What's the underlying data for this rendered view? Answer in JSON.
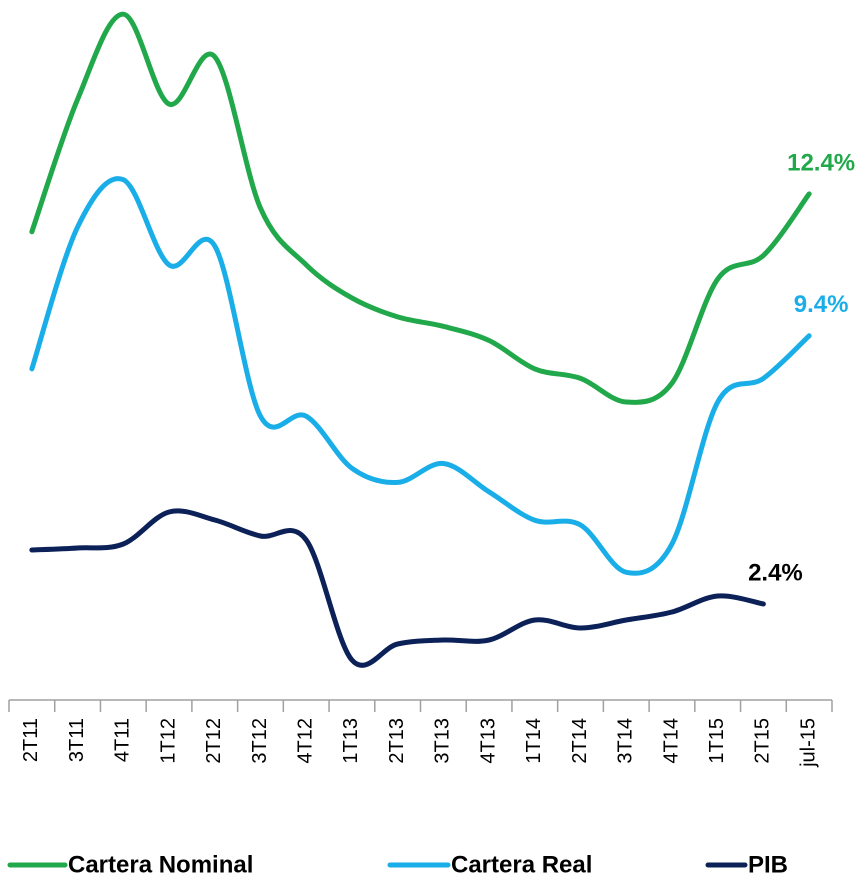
{
  "chart_data": {
    "type": "line",
    "categories": [
      "2T11",
      "3T11",
      "4T11",
      "1T12",
      "2T12",
      "3T12",
      "4T12",
      "1T13",
      "2T13",
      "3T13",
      "4T13",
      "1T14",
      "2T14",
      "3T14",
      "4T14",
      "1T15",
      "2T15",
      "jul-15"
    ],
    "series": [
      {
        "name": "Cartera Nominal",
        "color": "#21a84a",
        "values": [
          11.6,
          14.4,
          16.2,
          14.3,
          15.3,
          12.1,
          10.9,
          10.2,
          9.8,
          9.6,
          9.3,
          8.7,
          8.5,
          8.0,
          8.4,
          10.6,
          11.1,
          12.4
        ],
        "value_labels": [
          null,
          null,
          null,
          null,
          null,
          null,
          null,
          null,
          null,
          null,
          null,
          null,
          null,
          null,
          null,
          null,
          null,
          "12.4%"
        ]
      },
      {
        "name": "Cartera Real",
        "color": "#1aaee8",
        "values": [
          8.7,
          11.7,
          12.7,
          10.9,
          11.3,
          7.7,
          7.7,
          6.6,
          6.3,
          6.7,
          6.1,
          5.5,
          5.4,
          4.4,
          5.0,
          8.0,
          8.5,
          9.4
        ],
        "value_labels": [
          null,
          null,
          null,
          null,
          null,
          null,
          null,
          null,
          null,
          null,
          null,
          null,
          null,
          null,
          null,
          null,
          null,
          "9.4%"
        ]
      },
      {
        "name": "PIB",
        "color": "#0b2157",
        "axis": "y2",
        "values": [
          3.75,
          3.8,
          3.9,
          4.7,
          4.5,
          4.1,
          4.0,
          1.0,
          1.4,
          1.5,
          1.5,
          2.0,
          1.8,
          2.0,
          2.2,
          2.6,
          2.4,
          null
        ],
        "value_labels": [
          null,
          null,
          null,
          null,
          null,
          null,
          null,
          null,
          null,
          null,
          null,
          null,
          null,
          null,
          null,
          null,
          "2.4%",
          null
        ]
      }
    ],
    "ylim": [
      1.7,
      16.5
    ],
    "y2lim": [
      0,
      17.5
    ],
    "grid": false
  }
}
